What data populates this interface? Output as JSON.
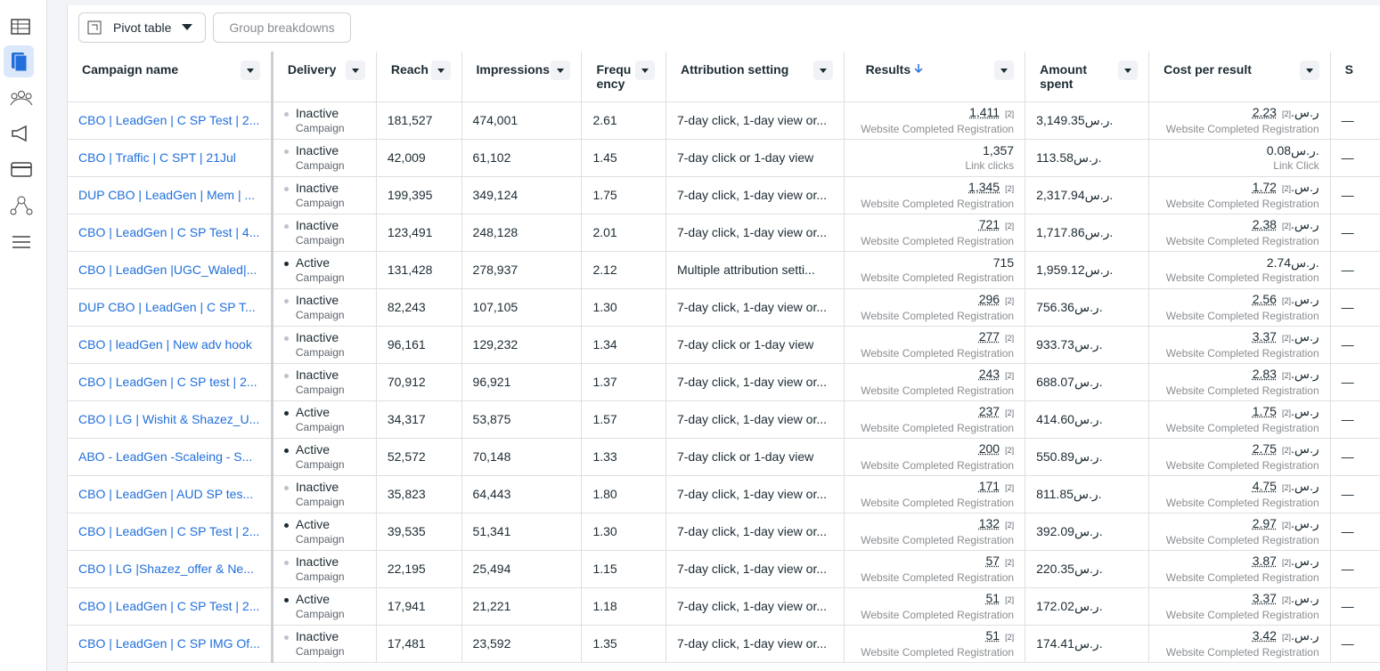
{
  "toolbar": {
    "pivot_button": "Pivot table",
    "group_button": "Group breakdowns"
  },
  "table": {
    "columns": [
      "Campaign name",
      "Delivery",
      "Reach",
      "Impressions",
      "Frequency",
      "Attribution setting",
      "Results",
      "Amount spent",
      "Cost per result",
      "S"
    ],
    "currency": "ر.س.",
    "rows": [
      {
        "name": "CBO | LeadGen | C SP Test | 2...",
        "delivery": "Inactive",
        "level": "Campaign",
        "reach": "181,527",
        "impressions": "474,001",
        "frequency": "2.61",
        "attribution": "7-day click, 1-day view or...",
        "results": "1,411",
        "results_type": "Website Completed Registration",
        "footnote": "[2]",
        "amount": "3,149.35",
        "cost": "2.23",
        "cost_type": "Website Completed Registration",
        "extra": "—"
      },
      {
        "name": "CBO | Traffic | C SPT | 21Jul",
        "delivery": "Inactive",
        "level": "Campaign",
        "reach": "42,009",
        "impressions": "61,102",
        "frequency": "1.45",
        "attribution": "7-day click or 1-day view",
        "results": "1,357",
        "results_type": "Link clicks",
        "amount": "113.58",
        "cost": "0.08",
        "cost_type": "Link Click",
        "extra": "—"
      },
      {
        "name": "DUP CBO | LeadGen | Mem | ...",
        "delivery": "Inactive",
        "level": "Campaign",
        "reach": "199,395",
        "impressions": "349,124",
        "frequency": "1.75",
        "attribution": "7-day click, 1-day view or...",
        "results": "1,345",
        "results_type": "Website Completed Registration",
        "footnote": "[2]",
        "amount": "2,317.94",
        "cost": "1.72",
        "cost_type": "Website Completed Registration",
        "extra": "—"
      },
      {
        "name": "CBO | LeadGen | C SP Test | 4...",
        "delivery": "Inactive",
        "level": "Campaign",
        "reach": "123,491",
        "impressions": "248,128",
        "frequency": "2.01",
        "attribution": "7-day click, 1-day view or...",
        "results": "721",
        "results_type": "Website Completed Registration",
        "footnote": "[2]",
        "amount": "1,717.86",
        "cost": "2.38",
        "cost_type": "Website Completed Registration",
        "extra": "—"
      },
      {
        "name": "CBO | LeadGen |UGC_Waled|...",
        "delivery": "Active",
        "level": "Campaign",
        "reach": "131,428",
        "impressions": "278,937",
        "frequency": "2.12",
        "attribution": "Multiple attribution setti...",
        "results": "715",
        "results_type": "Website Completed Registration",
        "amount": "1,959.12",
        "cost": "2.74",
        "cost_type": "Website Completed Registration",
        "extra": "—"
      },
      {
        "name": "DUP CBO | LeadGen | C SP T...",
        "delivery": "Inactive",
        "level": "Campaign",
        "reach": "82,243",
        "impressions": "107,105",
        "frequency": "1.30",
        "attribution": "7-day click, 1-day view or...",
        "results": "296",
        "results_type": "Website Completed Registration",
        "footnote": "[2]",
        "amount": "756.36",
        "cost": "2.56",
        "cost_type": "Website Completed Registration",
        "extra": "—"
      },
      {
        "name": "CBO | leadGen | New adv hook",
        "delivery": "Inactive",
        "level": "Campaign",
        "reach": "96,161",
        "impressions": "129,232",
        "frequency": "1.34",
        "attribution": "7-day click or 1-day view",
        "results": "277",
        "results_type": "Website Completed Registration",
        "footnote": "[2]",
        "amount": "933.73",
        "cost": "3.37",
        "cost_type": "Website Completed Registration",
        "extra": "—"
      },
      {
        "name": "CBO | LeadGen | C SP test | 2...",
        "delivery": "Inactive",
        "level": "Campaign",
        "reach": "70,912",
        "impressions": "96,921",
        "frequency": "1.37",
        "attribution": "7-day click, 1-day view or...",
        "results": "243",
        "results_type": "Website Completed Registration",
        "footnote": "[2]",
        "amount": "688.07",
        "cost": "2.83",
        "cost_type": "Website Completed Registration",
        "extra": "—"
      },
      {
        "name": "CBO | LG | Wishit & Shazez_U...",
        "delivery": "Active",
        "level": "Campaign",
        "reach": "34,317",
        "impressions": "53,875",
        "frequency": "1.57",
        "attribution": "7-day click, 1-day view or...",
        "results": "237",
        "results_type": "Website Completed Registration",
        "footnote": "[2]",
        "amount": "414.60",
        "cost": "1.75",
        "cost_type": "Website Completed Registration",
        "extra": "—"
      },
      {
        "name": "ABO - LeadGen -Scaleing - S...",
        "delivery": "Active",
        "level": "Campaign",
        "reach": "52,572",
        "impressions": "70,148",
        "frequency": "1.33",
        "attribution": "7-day click or 1-day view",
        "results": "200",
        "results_type": "Website Completed Registration",
        "footnote": "[2]",
        "amount": "550.89",
        "cost": "2.75",
        "cost_type": "Website Completed Registration",
        "extra": "—"
      },
      {
        "name": "CBO | LeadGen | AUD SP tes...",
        "delivery": "Inactive",
        "level": "Campaign",
        "reach": "35,823",
        "impressions": "64,443",
        "frequency": "1.80",
        "attribution": "7-day click, 1-day view or...",
        "results": "171",
        "results_type": "Website Completed Registration",
        "footnote": "[2]",
        "amount": "811.85",
        "cost": "4.75",
        "cost_type": "Website Completed Registration",
        "extra": "—"
      },
      {
        "name": "CBO | LeadGen | C SP Test | 2...",
        "delivery": "Active",
        "level": "Campaign",
        "reach": "39,535",
        "impressions": "51,341",
        "frequency": "1.30",
        "attribution": "7-day click, 1-day view or...",
        "results": "132",
        "results_type": "Website Completed Registration",
        "footnote": "[2]",
        "amount": "392.09",
        "cost": "2.97",
        "cost_type": "Website Completed Registration",
        "extra": "—"
      },
      {
        "name": "CBO | LG |Shazez_offer & Ne...",
        "delivery": "Inactive",
        "level": "Campaign",
        "reach": "22,195",
        "impressions": "25,494",
        "frequency": "1.15",
        "attribution": "7-day click, 1-day view or...",
        "results": "57",
        "results_type": "Website Completed Registration",
        "footnote": "[2]",
        "amount": "220.35",
        "cost": "3.87",
        "cost_type": "Website Completed Registration",
        "extra": "—"
      },
      {
        "name": "CBO | LeadGen | C SP Test | 2...",
        "delivery": "Active",
        "level": "Campaign",
        "reach": "17,941",
        "impressions": "21,221",
        "frequency": "1.18",
        "attribution": "7-day click, 1-day view or...",
        "results": "51",
        "results_type": "Website Completed Registration",
        "footnote": "[2]",
        "amount": "172.02",
        "cost": "3.37",
        "cost_type": "Website Completed Registration",
        "extra": "—"
      },
      {
        "name": "CBO | LeadGen | C SP IMG Of...",
        "delivery": "Inactive",
        "level": "Campaign",
        "reach": "17,481",
        "impressions": "23,592",
        "frequency": "1.35",
        "attribution": "7-day click, 1-day view or...",
        "results": "51",
        "results_type": "Website Completed Registration",
        "footnote": "[2]",
        "amount": "174.41",
        "cost": "3.42",
        "cost_type": "Website Completed Registration",
        "extra": "—"
      }
    ]
  }
}
